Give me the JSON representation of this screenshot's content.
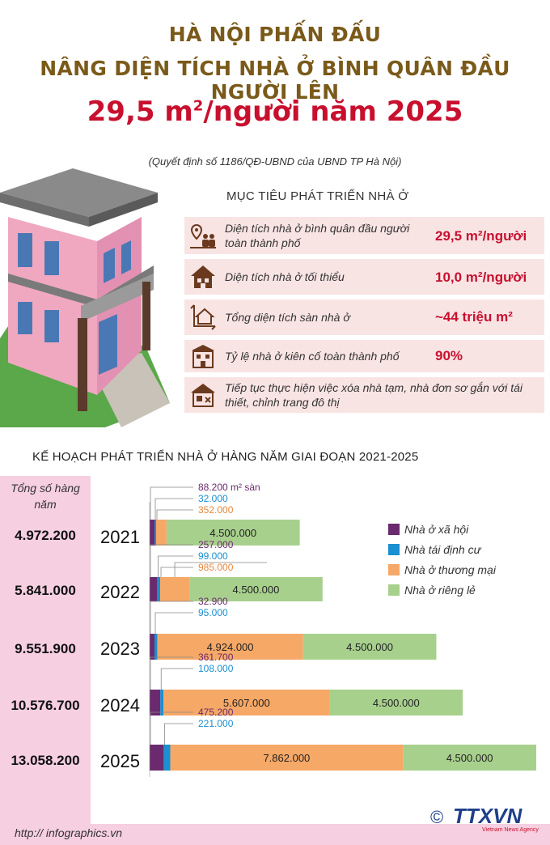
{
  "header": {
    "line1": "HÀ NỘI PHẤN ĐẤU",
    "line2": "NÂNG DIỆN TÍCH NHÀ Ở BÌNH QUÂN ĐẦU NGƯỜI LÊN",
    "line3_value": "29,5 m",
    "line3_sup": "2",
    "line3_rest": "/người năm 2025",
    "source": "(Quyết định số 1186/QĐ-UBND của UBND TP Hà Nội)"
  },
  "targets": {
    "heading": "MỤC TIÊU PHÁT TRIỂN NHÀ Ở",
    "items": [
      {
        "icon": "location-people-icon",
        "label": "Diện tích nhà ở bình quân đầu người toàn thành phố",
        "value": "29,5 m²/người"
      },
      {
        "icon": "house-icon",
        "label": "Diện tích nhà ở tối thiểu",
        "value": "10,0 m²/người"
      },
      {
        "icon": "floor-area-icon",
        "label": "Tổng diện tích sàn nhà ở",
        "value": "~44 triệu m²"
      },
      {
        "icon": "building-icon",
        "label": "Tỷ lệ nhà ở kiên cố toàn thành phố",
        "value": "90%"
      },
      {
        "icon": "renovation-icon",
        "label": "Tiếp tục thực hiện việc xóa nhà tạm, nhà đơn sơ gắn với tái thiết, chỉnh trang đô thị",
        "value": ""
      }
    ]
  },
  "plan": {
    "heading": "KẾ HOẠCH PHÁT TRIỂN NHÀ Ở HÀNG NĂM GIAI ĐOẠN 2021-2025",
    "total_header": "Tổng số hàng năm",
    "totals": [
      "4.972.200",
      "5.841.000",
      "9.551.900",
      "10.576.700",
      "13.058.200"
    ]
  },
  "chart_data": {
    "type": "bar",
    "orientation": "horizontal",
    "stacked": true,
    "categories": [
      "2021",
      "2022",
      "2023",
      "2024",
      "2025"
    ],
    "series": [
      {
        "name": "Nhà ở xã hội",
        "color": "#6b2a6e",
        "values": [
          88200,
          257000,
          32900,
          361700,
          475200
        ],
        "labels": [
          "88.200 m² sàn",
          "257.000",
          "32.900",
          "361.700",
          "475.200"
        ]
      },
      {
        "name": "Nhà tái định cư",
        "color": "#1a8fd1",
        "values": [
          32000,
          99000,
          95000,
          108000,
          221000
        ],
        "labels": [
          "32.000",
          "99.000",
          "95.000",
          "108.000",
          "221.000"
        ]
      },
      {
        "name": "Nhà ở thương mại",
        "color": "#f6a866",
        "values": [
          352000,
          985000,
          4924000,
          5607000,
          7862000
        ],
        "labels": [
          "352.000",
          "985.000",
          "4.924.000",
          "5.607.000",
          "7.862.000"
        ]
      },
      {
        "name": "Nhà ở riêng lẻ",
        "color": "#a8d08d",
        "values": [
          4500000,
          4500000,
          4500000,
          4500000,
          4500000
        ],
        "labels": [
          "4.500.000",
          "4.500.000",
          "4.500.000",
          "4.500.000",
          "4.500.000"
        ]
      }
    ],
    "label_colors": [
      "#6b2a6e",
      "#1a8fd1",
      "#e8873a"
    ]
  },
  "footer": {
    "url": "http:// infographics.vn",
    "logo_text": "TTXVN",
    "logo_sub": "Vietnam News Agency",
    "copyright": "©"
  }
}
